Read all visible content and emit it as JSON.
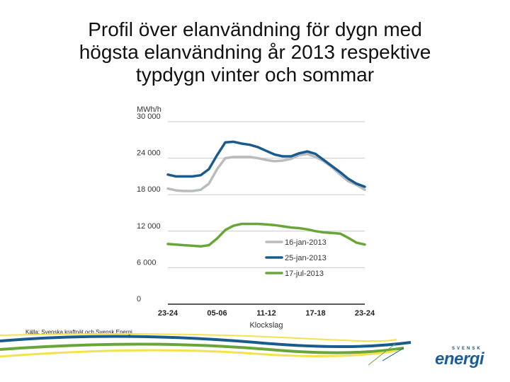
{
  "title_lines": [
    "Profil över elanvändning för dygn med",
    "högsta elanvändning år 2013 respektive",
    "typdygn vinter och sommar"
  ],
  "source": "Källa: Svenska kraftnät och Svensk Energi",
  "logo": {
    "small": "SVENSK",
    "main": "energi"
  },
  "colors": {
    "winter_peak": "#b9bcbe",
    "winter_day": "#1a5b8e",
    "summer": "#6aa53a",
    "grid": "#c9c9c9"
  },
  "chart_data": {
    "type": "line",
    "title": "",
    "ylabel": "MWh/h",
    "xlabel": "Klockslag",
    "ylim": [
      0,
      30000
    ],
    "xlim": [
      0,
      24
    ],
    "yticks": [
      0,
      6000,
      12000,
      18000,
      24000,
      30000
    ],
    "ytick_labels": [
      "0",
      "6 000",
      "12 000",
      "18 000",
      "24 000",
      "30 000"
    ],
    "xticks": [
      0,
      6,
      12,
      18,
      24
    ],
    "xtick_labels": [
      "23-24",
      "05-06",
      "11-12",
      "17-18",
      "23-24"
    ],
    "x": [
      0,
      1,
      2,
      3,
      4,
      5,
      6,
      7,
      8,
      9,
      10,
      11,
      12,
      13,
      14,
      15,
      16,
      17,
      18,
      19,
      20,
      21,
      22,
      23,
      24
    ],
    "series": [
      {
        "name": "16-jan-2013",
        "values": [
          19000,
          18700,
          18600,
          18600,
          18800,
          19800,
          22200,
          24000,
          24200,
          24200,
          24200,
          24000,
          23700,
          23500,
          23600,
          23900,
          24500,
          24700,
          24200,
          23500,
          22500,
          21300,
          20200,
          19600,
          18800
        ]
      },
      {
        "name": "25-jan-2013",
        "values": [
          21300,
          21000,
          21000,
          21000,
          21200,
          22200,
          24500,
          26600,
          26700,
          26400,
          26200,
          25800,
          25200,
          24600,
          24300,
          24300,
          24800,
          25100,
          24700,
          23700,
          22700,
          21700,
          20600,
          19800,
          19300
        ]
      },
      {
        "name": "17-jul-2013",
        "values": [
          9900,
          9800,
          9700,
          9600,
          9500,
          9700,
          10800,
          12200,
          12900,
          13200,
          13200,
          13200,
          13100,
          13000,
          12800,
          12600,
          12500,
          12300,
          12000,
          11800,
          11700,
          11600,
          10900,
          10100,
          9800
        ]
      }
    ],
    "legend_position": "lower-right"
  }
}
